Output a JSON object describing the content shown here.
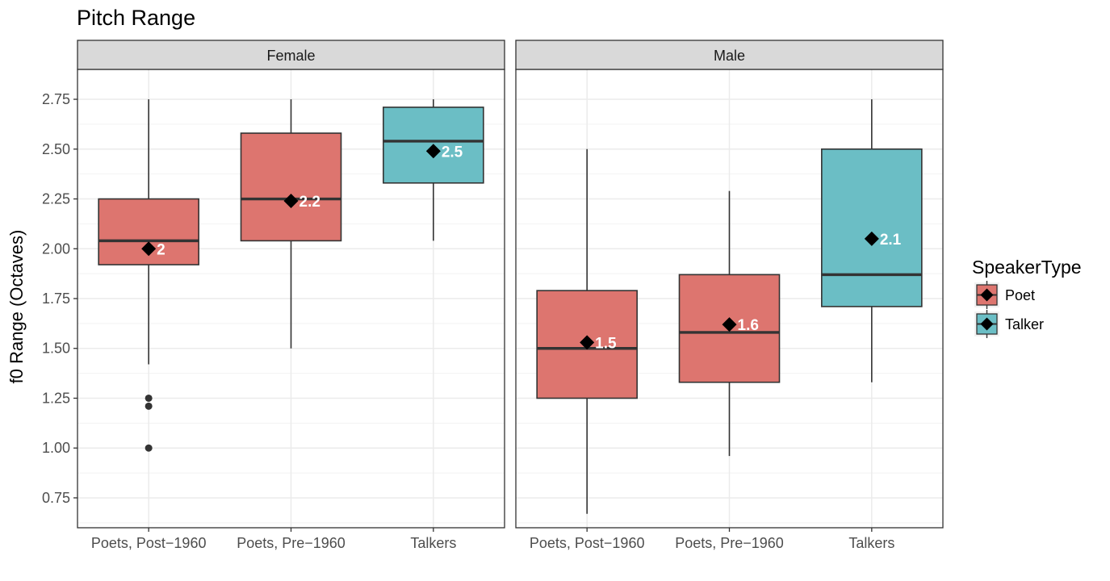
{
  "chart_data": {
    "type": "boxplot",
    "title": "Pitch Range",
    "ylabel": "f0 Range (Octaves)",
    "xlabel": "",
    "ylim": [
      0.6,
      2.9
    ],
    "yticks": [
      "0.75",
      "1.00",
      "1.25",
      "1.50",
      "1.75",
      "2.00",
      "2.25",
      "2.50",
      "2.75"
    ],
    "grid": true,
    "categories": [
      "Poets, Post−1960",
      "Poets, Pre−1960",
      "Talkers"
    ],
    "colors": {
      "Poet": "#dd756f",
      "Talker": "#6bbec5"
    },
    "legend": {
      "title": "SpeakerType",
      "position": "right",
      "items": [
        {
          "name": "Poet",
          "color": "#dd756f"
        },
        {
          "name": "Talker",
          "color": "#6bbec5"
        }
      ]
    },
    "panels": [
      {
        "label": "Female",
        "boxes": [
          {
            "category": "Poets, Post−1960",
            "type": "Poet",
            "lower_whisker": 1.42,
            "q1": 1.92,
            "median": 2.04,
            "q3": 2.25,
            "upper_whisker": 2.75,
            "mean": 2.0,
            "mean_label": "2",
            "outliers": [
              1.25,
              1.21,
              1.0
            ]
          },
          {
            "category": "Poets, Pre−1960",
            "type": "Poet",
            "lower_whisker": 1.5,
            "q1": 2.04,
            "median": 2.25,
            "q3": 2.58,
            "upper_whisker": 2.75,
            "mean": 2.24,
            "mean_label": "2.2",
            "outliers": []
          },
          {
            "category": "Talkers",
            "type": "Talker",
            "lower_whisker": 2.04,
            "q1": 2.33,
            "median": 2.54,
            "q3": 2.71,
            "upper_whisker": 2.75,
            "mean": 2.49,
            "mean_label": "2.5",
            "outliers": []
          }
        ]
      },
      {
        "label": "Male",
        "boxes": [
          {
            "category": "Poets, Post−1960",
            "type": "Poet",
            "lower_whisker": 0.67,
            "q1": 1.25,
            "median": 1.5,
            "q3": 1.79,
            "upper_whisker": 2.5,
            "mean": 1.53,
            "mean_label": "1.5",
            "outliers": []
          },
          {
            "category": "Poets, Pre−1960",
            "type": "Poet",
            "lower_whisker": 0.96,
            "q1": 1.33,
            "median": 1.58,
            "q3": 1.87,
            "upper_whisker": 2.29,
            "mean": 1.62,
            "mean_label": "1.6",
            "outliers": []
          },
          {
            "category": "Talkers",
            "type": "Talker",
            "lower_whisker": 1.33,
            "q1": 1.71,
            "median": 1.87,
            "q3": 2.5,
            "upper_whisker": 2.75,
            "mean": 2.05,
            "mean_label": "2.1",
            "outliers": []
          }
        ]
      }
    ]
  }
}
